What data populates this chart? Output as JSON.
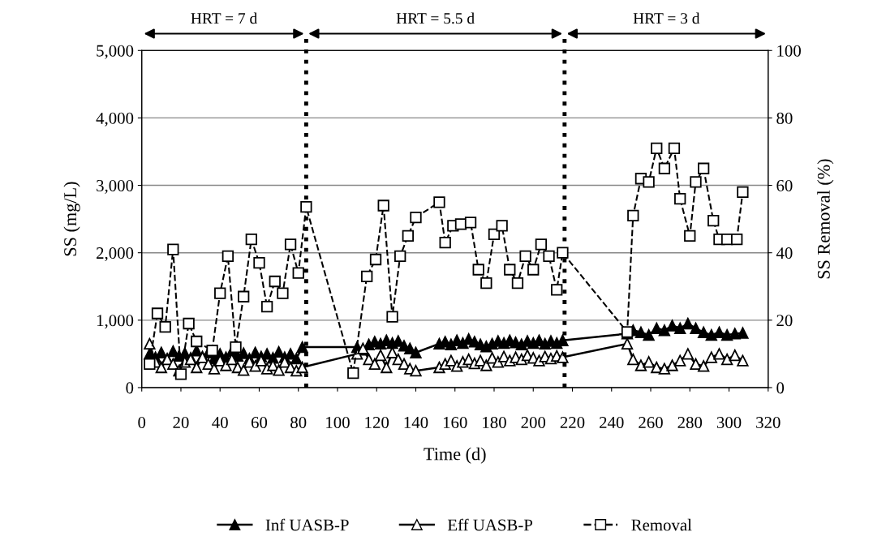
{
  "chart_data": {
    "type": "line",
    "xlabel": "Time (d)",
    "ylabel": "SS (mg/L)",
    "y2label": "SS Removal (%)",
    "xlim": [
      0,
      320
    ],
    "xticks": [
      0,
      20,
      40,
      60,
      80,
      100,
      120,
      140,
      160,
      180,
      200,
      220,
      240,
      260,
      280,
      300,
      320
    ],
    "ylim": [
      0,
      5000
    ],
    "yticks": [
      {
        "value": 0,
        "label": "0"
      },
      {
        "value": 1000,
        "label": "1,000"
      },
      {
        "value": 2000,
        "label": "2,000"
      },
      {
        "value": 3000,
        "label": "3,000"
      },
      {
        "value": 4000,
        "label": "4,000"
      },
      {
        "value": 5000,
        "label": "5,000"
      }
    ],
    "y2lim": [
      0,
      100
    ],
    "y2ticks": [
      0,
      20,
      40,
      60,
      80,
      100
    ],
    "grid": "y",
    "legend": "bottom",
    "series": [
      {
        "name": "Inf UASB-P",
        "color": "#000000",
        "marker": "triangle",
        "line_style": "solid",
        "x": [
          4,
          7,
          10,
          13,
          16,
          19,
          22,
          25,
          28,
          31,
          34,
          37,
          40,
          43,
          46,
          49,
          52,
          55,
          58,
          61,
          64,
          67,
          70,
          73,
          76,
          79,
          82,
          110,
          113,
          116,
          119,
          122,
          125,
          128,
          131,
          134,
          137,
          140,
          152,
          155,
          158,
          161,
          164,
          167,
          170,
          173,
          176,
          179,
          182,
          185,
          188,
          191,
          194,
          197,
          200,
          203,
          206,
          209,
          212,
          215,
          248,
          251,
          255,
          259,
          263,
          267,
          271,
          275,
          279,
          283,
          287,
          291,
          295,
          299,
          303,
          307
        ],
        "values": [
          500,
          450,
          520,
          430,
          540,
          470,
          510,
          440,
          550,
          460,
          520,
          430,
          500,
          450,
          540,
          470,
          510,
          430,
          520,
          460,
          500,
          440,
          530,
          450,
          500,
          430,
          600,
          600,
          560,
          640,
          680,
          650,
          700,
          660,
          690,
          620,
          580,
          520,
          650,
          680,
          640,
          700,
          660,
          720,
          680,
          640,
          610,
          650,
          690,
          660,
          700,
          670,
          640,
          690,
          660,
          700,
          650,
          690,
          660,
          700,
          800,
          850,
          820,
          780,
          880,
          850,
          920,
          880,
          950,
          880,
          820,
          780,
          820,
          780,
          800,
          810
        ]
      },
      {
        "name": "Eff UASB-P",
        "color": "#ffffff",
        "marker": "triangle",
        "line_style": "solid",
        "x": [
          4,
          7,
          10,
          13,
          16,
          19,
          22,
          25,
          28,
          31,
          34,
          37,
          40,
          43,
          46,
          49,
          52,
          55,
          58,
          61,
          64,
          67,
          70,
          73,
          76,
          79,
          82,
          110,
          113,
          116,
          119,
          122,
          125,
          128,
          131,
          134,
          137,
          140,
          152,
          155,
          158,
          161,
          164,
          167,
          170,
          173,
          176,
          179,
          182,
          185,
          188,
          191,
          194,
          197,
          200,
          203,
          206,
          209,
          212,
          215,
          248,
          251,
          255,
          259,
          263,
          267,
          271,
          275,
          279,
          283,
          287,
          291,
          295,
          299,
          303,
          307
        ],
        "values": [
          650,
          380,
          300,
          420,
          350,
          250,
          380,
          420,
          300,
          450,
          350,
          280,
          400,
          330,
          420,
          300,
          260,
          380,
          320,
          400,
          280,
          330,
          260,
          380,
          300,
          250,
          300,
          500,
          580,
          420,
          350,
          480,
          300,
          520,
          420,
          350,
          280,
          250,
          300,
          350,
          400,
          320,
          380,
          420,
          360,
          400,
          330,
          440,
          380,
          460,
          400,
          450,
          420,
          480,
          440,
          400,
          460,
          430,
          470,
          450,
          650,
          420,
          330,
          380,
          300,
          280,
          330,
          400,
          500,
          350,
          320,
          450,
          500,
          420,
          480,
          400
        ]
      },
      {
        "name": "Removal",
        "color": "#ffffff",
        "marker": "square",
        "line_style": "dashed",
        "axis": "y2",
        "x": [
          4,
          8,
          12,
          16,
          20,
          24,
          28,
          36,
          40,
          44,
          48,
          52,
          56,
          60,
          64,
          68,
          72,
          76,
          80,
          84,
          108,
          115,
          119.5,
          123.5,
          128,
          132,
          136,
          140,
          152,
          155,
          159,
          163,
          168,
          172,
          176,
          180,
          184,
          188,
          192,
          196,
          200,
          204,
          208,
          212,
          215,
          248,
          251,
          255,
          259,
          263,
          267,
          272,
          275,
          280,
          283,
          287,
          292,
          295,
          299,
          304,
          307
        ],
        "values": [
          7,
          22,
          18,
          41,
          4,
          19,
          13.7,
          11,
          28,
          39,
          12,
          27,
          44,
          37,
          24,
          31.5,
          28,
          42.5,
          34,
          53.6,
          4.3,
          33,
          38,
          54,
          21,
          39,
          45,
          50.5,
          55,
          43,
          48,
          48.5,
          49,
          35,
          31,
          45.5,
          48,
          35,
          31,
          39,
          35,
          42.5,
          39,
          29,
          40,
          16.5,
          51,
          62,
          61,
          71,
          65,
          71,
          56,
          45,
          61,
          65,
          49.5,
          44,
          44,
          44,
          58
        ]
      }
    ],
    "ref_lines": [
      {
        "axis": "x",
        "value": 84,
        "color": "#000000",
        "line_style": "dotted"
      },
      {
        "axis": "x",
        "value": 216,
        "color": "#000000",
        "line_style": "dotted"
      }
    ],
    "annotations": [
      "HRT = 7 d",
      "HRT = 5.5 d",
      "HRT = 3 d"
    ]
  }
}
